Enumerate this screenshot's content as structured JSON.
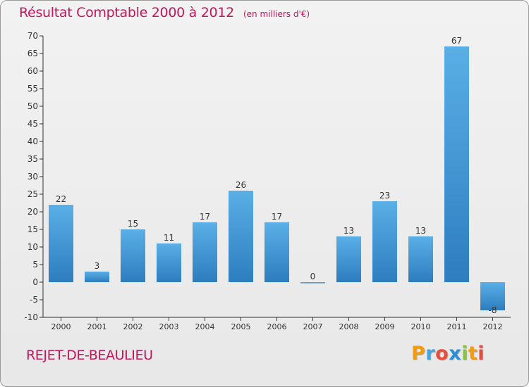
{
  "title": "Résultat Comptable 2000 à 2012",
  "subtitle": "(en milliers d'€)",
  "place": "REJET-DE-BEAULIEU",
  "logo": {
    "letters": [
      "P",
      "r",
      "o",
      "x",
      "i",
      "t",
      "i"
    ],
    "colors": [
      "#f39c12",
      "#3fa7e0",
      "#e74c3c",
      "#2a8fd6",
      "#8bc34a",
      "#f39c12",
      "#e74c3c"
    ]
  },
  "colors": {
    "title": "#c0185a",
    "bar_light": "#5aafe6",
    "bar_dark": "#2d7dbf",
    "axis": "#333333"
  },
  "chart_data": {
    "type": "bar",
    "title": "Résultat Comptable 2000 à 2012",
    "subtitle": "(en milliers d'€)",
    "categories": [
      "2000",
      "2001",
      "2002",
      "2003",
      "2004",
      "2005",
      "2006",
      "2007",
      "2008",
      "2009",
      "2010",
      "2011",
      "2012"
    ],
    "values": [
      22,
      3,
      15,
      11,
      17,
      26,
      17,
      0,
      13,
      23,
      13,
      67,
      -8
    ],
    "ylim": [
      -10,
      70
    ],
    "yticks": [
      -10,
      -5,
      0,
      5,
      10,
      15,
      20,
      25,
      30,
      35,
      40,
      45,
      50,
      55,
      60,
      65,
      70
    ],
    "grid": false,
    "legend": "none"
  }
}
